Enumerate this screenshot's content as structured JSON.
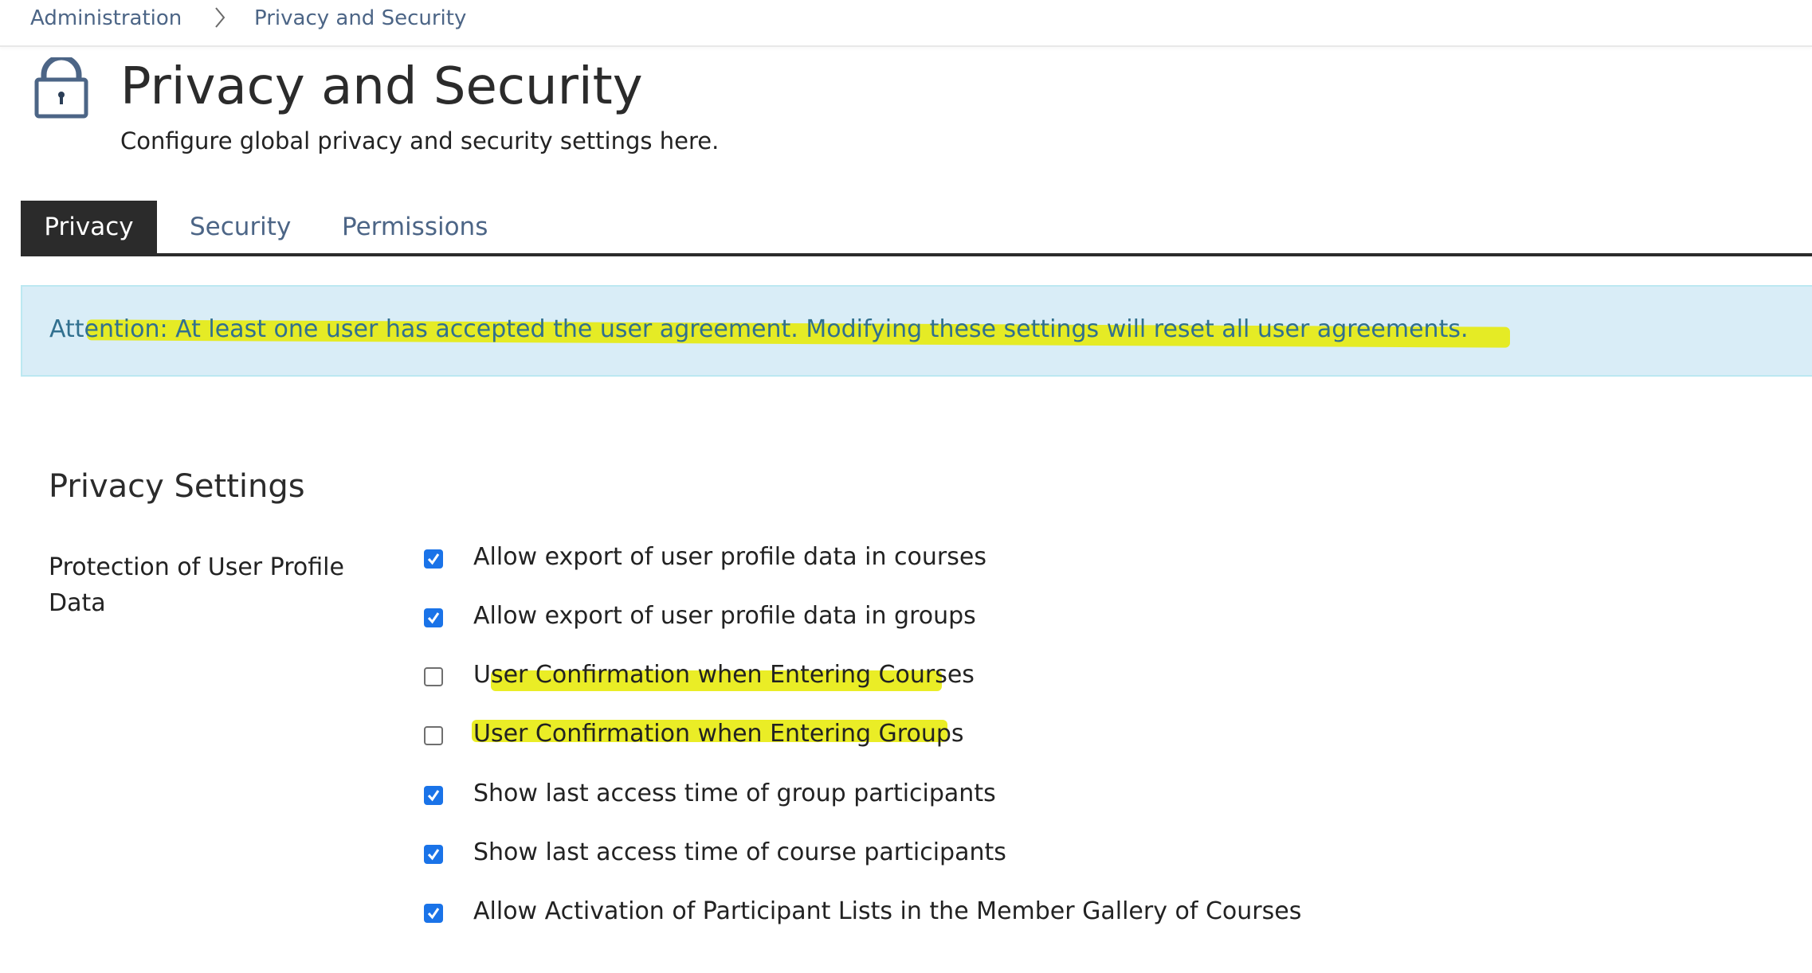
{
  "breadcrumb": {
    "items": [
      "Administration",
      "Privacy and Security"
    ]
  },
  "header": {
    "title": "Privacy and Security",
    "subtitle": "Configure global privacy and security settings here.",
    "icon": "lock-icon"
  },
  "tabs": [
    {
      "label": "Privacy",
      "active": true
    },
    {
      "label": "Security",
      "active": false
    },
    {
      "label": "Permissions",
      "active": false
    }
  ],
  "alert": {
    "text": "Attention: At least one user has accepted the user agreement. Modifying these settings will reset all user agreements."
  },
  "section": {
    "title": "Privacy Settings",
    "group_label": "Protection of User Profile Data",
    "options": [
      {
        "label": "Allow export of user profile data in courses",
        "checked": true
      },
      {
        "label": "Allow export of user profile data in groups",
        "checked": true
      },
      {
        "label": "User Confirmation when Entering Courses",
        "checked": false
      },
      {
        "label": "User Confirmation when Entering Groups",
        "checked": false
      },
      {
        "label": "Show last access time of group participants",
        "checked": true
      },
      {
        "label": "Show last access time of course participants",
        "checked": true
      },
      {
        "label": "Allow Activation of Participant Lists in the Member Gallery of Courses",
        "checked": true
      }
    ]
  },
  "colors": {
    "accent": "#1a73e8",
    "alert_bg": "#d9edf7",
    "alert_text": "#31708f",
    "highlight": "#e6ea00",
    "tab_active": "#2b2b2b"
  }
}
